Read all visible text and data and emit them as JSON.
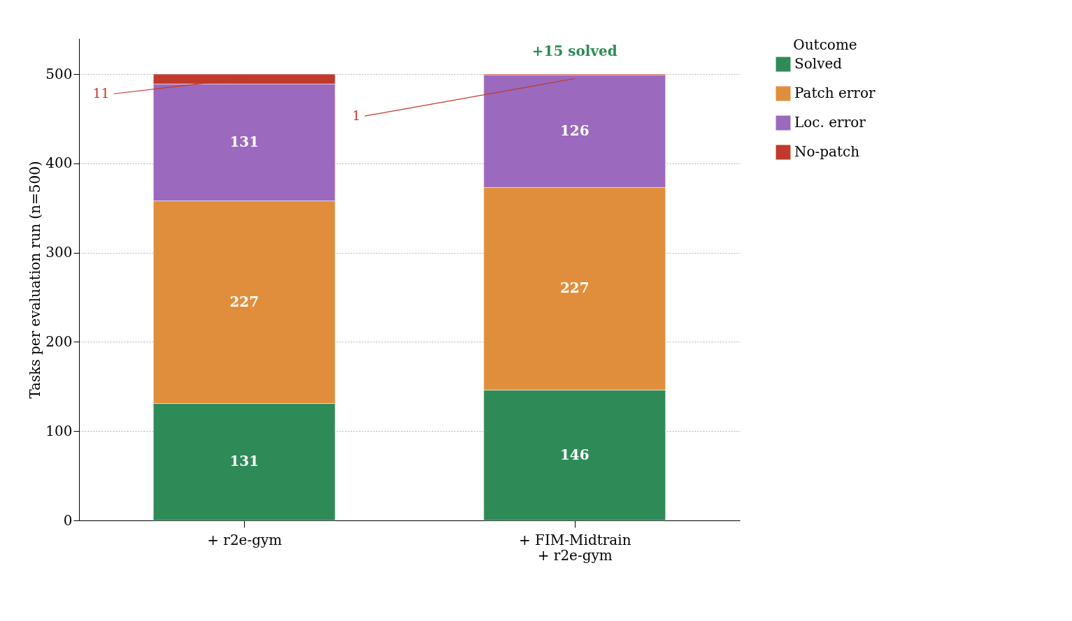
{
  "chart_data": {
    "type": "bar",
    "stacked": true,
    "categories": [
      "+ r2e-gym",
      "+ FIM-Midtrain\n+ r2e-gym"
    ],
    "ylabel": "Tasks per evaluation run (n=500)",
    "legend_title": "Outcome",
    "series": [
      {
        "name": "Solved",
        "color": "#2e8b57",
        "values": [
          131,
          146
        ],
        "value_labels": [
          "131",
          "146"
        ]
      },
      {
        "name": "Patch error",
        "color": "#e08e3c",
        "values": [
          227,
          227
        ],
        "value_labels": [
          "227",
          "227"
        ]
      },
      {
        "name": "Loc. error",
        "color": "#9b69bd",
        "values": [
          131,
          126
        ],
        "value_labels": [
          "131",
          "126"
        ]
      },
      {
        "name": "No-patch",
        "color": "#c0392b",
        "values": [
          11,
          1
        ],
        "value_labels": [
          null,
          null
        ]
      }
    ],
    "ylim": [
      0,
      540
    ],
    "yticks": [
      0,
      100,
      200,
      300,
      400,
      500
    ],
    "grid": "y",
    "legend": "right",
    "annotations": [
      {
        "text": "11",
        "x": "+ r2e-gym",
        "y": 500
      },
      {
        "text": "1",
        "x": "+ FIM-Midtrain\n+ r2e-gym",
        "y": 500
      },
      {
        "text": "+15 solved",
        "x": "+ FIM-Midtrain\n+ r2e-gym",
        "y": 500
      }
    ]
  }
}
